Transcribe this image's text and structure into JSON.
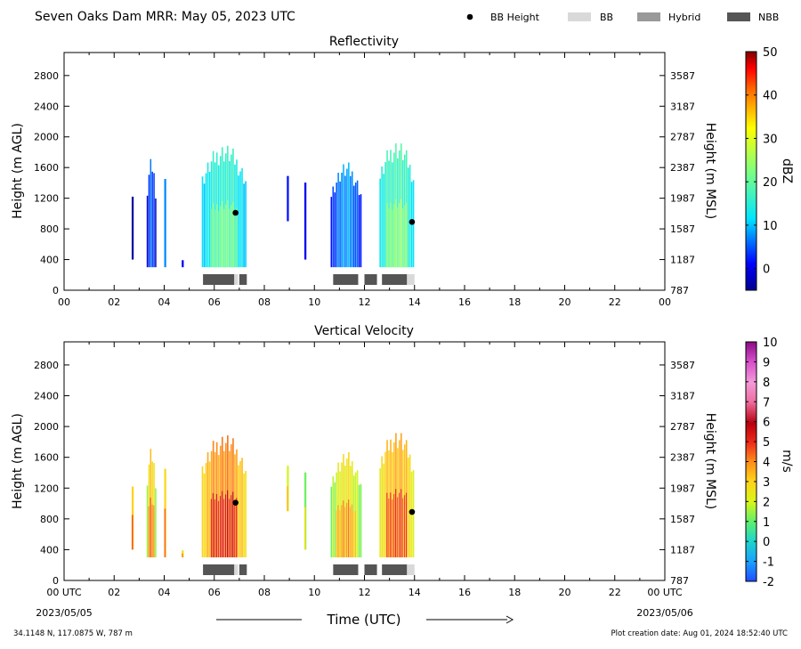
{
  "header": {
    "title": "Seven Oaks Dam MRR:  May 05, 2023 UTC"
  },
  "legend": {
    "items": [
      {
        "label": "BB Height",
        "kind": "dot",
        "color": "#000000"
      },
      {
        "label": "BB",
        "kind": "swatch",
        "color": "#d9d9d9"
      },
      {
        "label": "Hybrid",
        "kind": "swatch",
        "color": "#999999"
      },
      {
        "label": "NBB",
        "kind": "swatch",
        "color": "#555555"
      }
    ]
  },
  "footer": {
    "location": "34.1148 N, 117.0875 W, 787 m",
    "creation": "Plot creation date: Aug 01, 2024 18:52:40 UTC",
    "start_date": "2023/05/05",
    "end_date": "2023/05/06",
    "x_title": "Time (UTC)"
  },
  "chart_data": [
    {
      "type": "heatmap",
      "title": "Reflectivity",
      "xlabel": "",
      "ylabel": "Height (m AGL)",
      "ylabel_right": "Height (m MSL)",
      "xlim": [
        0,
        24
      ],
      "ylim": [
        0,
        3100
      ],
      "x_ticks": [
        "00",
        "02",
        "04",
        "06",
        "08",
        "10",
        "12",
        "14",
        "16",
        "18",
        "20",
        "22",
        "00"
      ],
      "y_ticks": [
        0,
        400,
        800,
        1200,
        1600,
        2000,
        2400,
        2800
      ],
      "y_ticks_right": [
        "787",
        "1187",
        "1587",
        "1987",
        "2387",
        "2787",
        "3187",
        "3587"
      ],
      "colorbar": {
        "label": "dBZ",
        "min": -5,
        "max": 50,
        "ticks": [
          0,
          10,
          20,
          30,
          40,
          50
        ]
      },
      "bb_height": [
        {
          "x": 6.85,
          "y": 1010
        },
        {
          "x": 13.9,
          "y": 890
        }
      ],
      "bb_type_bars": [
        {
          "start": 5.55,
          "end": 6.8,
          "type": "NBB"
        },
        {
          "start": 6.8,
          "end": 6.95,
          "type": "BB"
        },
        {
          "start": 7.0,
          "end": 7.3,
          "type": "NBB"
        },
        {
          "start": 10.75,
          "end": 11.75,
          "type": "NBB"
        },
        {
          "start": 12.0,
          "end": 12.5,
          "type": "NBB"
        },
        {
          "start": 12.7,
          "end": 13.7,
          "type": "NBB"
        },
        {
          "start": 13.7,
          "end": 14.0,
          "type": "BB"
        }
      ],
      "precip_columns": [
        {
          "start": 2.7,
          "end": 2.8,
          "top": 1400,
          "base": 400,
          "value": -2
        },
        {
          "start": 3.3,
          "end": 3.7,
          "top": 1750,
          "base": 300,
          "value": 5
        },
        {
          "start": 4.0,
          "end": 4.1,
          "top": 1600,
          "base": 300,
          "value": 8
        },
        {
          "start": 4.7,
          "end": 4.8,
          "top": 400,
          "base": 300,
          "value": 0
        },
        {
          "start": 5.5,
          "end": 7.3,
          "top": 1950,
          "base": 300,
          "value": 16
        },
        {
          "start": 8.9,
          "end": 9.0,
          "top": 1500,
          "base": 900,
          "value": 0
        },
        {
          "start": 9.6,
          "end": 9.7,
          "top": 1600,
          "base": 400,
          "value": 2
        },
        {
          "start": 10.65,
          "end": 11.9,
          "top": 1700,
          "base": 300,
          "value": 8
        },
        {
          "start": 12.6,
          "end": 14.0,
          "top": 2000,
          "base": 300,
          "value": 18
        }
      ]
    },
    {
      "type": "heatmap",
      "title": "Vertical Velocity",
      "xlabel": "Time (UTC)",
      "ylabel": "Height (m AGL)",
      "ylabel_right": "Height (m MSL)",
      "xlim": [
        0,
        24
      ],
      "ylim": [
        0,
        3100
      ],
      "x_ticks": [
        "00 UTC",
        "02",
        "04",
        "06",
        "08",
        "10",
        "12",
        "14",
        "16",
        "18",
        "20",
        "22",
        "00 UTC"
      ],
      "y_ticks": [
        0,
        400,
        800,
        1200,
        1600,
        2000,
        2400,
        2800
      ],
      "y_ticks_right": [
        "787",
        "1187",
        "1587",
        "1987",
        "2387",
        "2787",
        "3187",
        "3587"
      ],
      "colorbar": {
        "label": "m/s",
        "min": -2,
        "max": 10,
        "ticks": [
          -2,
          -1,
          0,
          1,
          2,
          3,
          4,
          5,
          6,
          7,
          8,
          9,
          10
        ]
      },
      "bb_height": [
        {
          "x": 6.85,
          "y": 1010
        },
        {
          "x": 13.9,
          "y": 890
        }
      ],
      "bb_type_bars": [
        {
          "start": 5.55,
          "end": 6.8,
          "type": "NBB"
        },
        {
          "start": 6.8,
          "end": 6.95,
          "type": "BB"
        },
        {
          "start": 7.0,
          "end": 7.3,
          "type": "NBB"
        },
        {
          "start": 10.75,
          "end": 11.75,
          "type": "NBB"
        },
        {
          "start": 12.0,
          "end": 12.5,
          "type": "NBB"
        },
        {
          "start": 12.7,
          "end": 13.7,
          "type": "NBB"
        },
        {
          "start": 13.7,
          "end": 14.0,
          "type": "BB"
        }
      ],
      "precip_columns": [
        {
          "start": 2.7,
          "end": 2.8,
          "top": 1400,
          "base": 400,
          "value": 3.5
        },
        {
          "start": 3.3,
          "end": 3.7,
          "top": 1750,
          "base": 300,
          "value": 3.0
        },
        {
          "start": 4.0,
          "end": 4.1,
          "top": 1600,
          "base": 300,
          "value": 3.0
        },
        {
          "start": 4.7,
          "end": 4.8,
          "top": 400,
          "base": 300,
          "value": 2.5
        },
        {
          "start": 5.5,
          "end": 7.3,
          "top": 1950,
          "base": 300,
          "value": 4.0
        },
        {
          "start": 8.9,
          "end": 9.0,
          "top": 1500,
          "base": 900,
          "value": 1.5
        },
        {
          "start": 9.6,
          "end": 9.7,
          "top": 1600,
          "base": 400,
          "value": 1.5
        },
        {
          "start": 10.65,
          "end": 11.9,
          "top": 1700,
          "base": 300,
          "value": 2.5
        },
        {
          "start": 12.6,
          "end": 14.0,
          "top": 2000,
          "base": 300,
          "value": 3.5
        }
      ]
    }
  ]
}
